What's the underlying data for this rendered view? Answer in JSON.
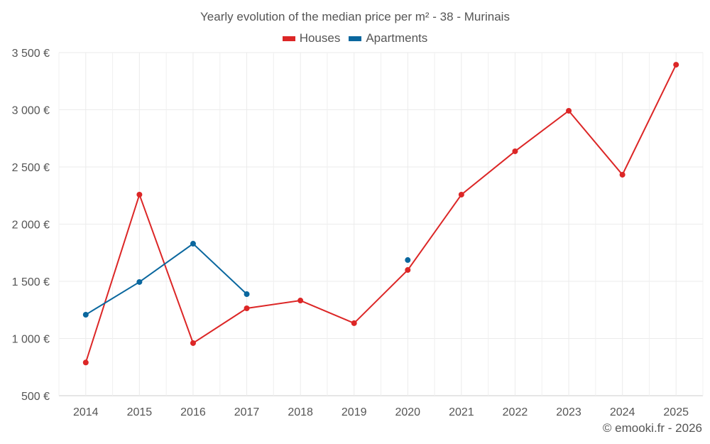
{
  "chart_data": {
    "type": "line",
    "title": "Yearly evolution of the median price per m² - 38 - Murinais",
    "categories": [
      "2014",
      "2015",
      "2016",
      "2017",
      "2018",
      "2019",
      "2020",
      "2021",
      "2022",
      "2023",
      "2024",
      "2025"
    ],
    "series": [
      {
        "name": "Houses",
        "color": "#dc2626",
        "values": [
          790,
          2258,
          960,
          1264,
          1332,
          1134,
          1599,
          2258,
          2637,
          2991,
          2432,
          3394
        ]
      },
      {
        "name": "Apartments",
        "color": "#0a679e",
        "values": [
          1208,
          1494,
          1829,
          1388,
          null,
          null,
          1686,
          null,
          null,
          null,
          null,
          null
        ]
      }
    ],
    "yticks": [
      500,
      1000,
      1500,
      2000,
      2500,
      3000,
      3500
    ],
    "ytick_labels": [
      "500 €",
      "1 000 €",
      "1 500 €",
      "2 000 €",
      "2 500 €",
      "3 000 €",
      "3 500 €"
    ],
    "ylim": [
      500,
      3500
    ],
    "xlabel": "",
    "ylabel": "",
    "grid": true,
    "legend_position": "top-center"
  },
  "credit": "© emooki.fr - 2026"
}
